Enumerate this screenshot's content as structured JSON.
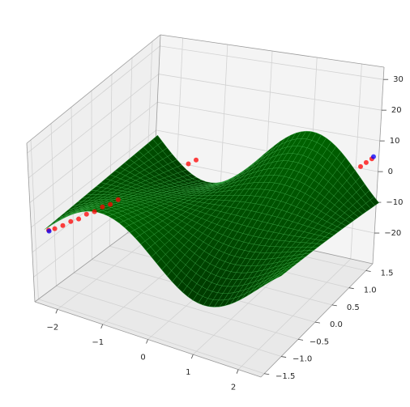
{
  "chart_data": {
    "type": "surface3d",
    "title": "",
    "xlabel": "",
    "ylabel": "",
    "zlabel": "",
    "x_ticks": [
      "−2",
      "−1",
      "0",
      "1",
      "2"
    ],
    "y_ticks": [
      "−1.5",
      "−1.0",
      "−0.5",
      "0.0",
      "0.5",
      "1.0",
      "1.5"
    ],
    "z_ticks": [
      "−20",
      "−10",
      "0",
      "10",
      "20",
      "30"
    ],
    "xlim": [
      -2.5,
      2.5
    ],
    "ylim": [
      -1.6,
      1.7
    ],
    "zlim": [
      -30,
      34
    ],
    "surface": {
      "function": "z = 8*sin(1.4*x)*y",
      "x_range": [
        -2.3,
        2.7
      ],
      "y_range": [
        -1.5,
        1.5
      ],
      "color": "#006400",
      "wire_color": "#3cb44b"
    },
    "scatter_series": [
      {
        "color": "#ff0000",
        "points": [
          [
            -2.25,
            -1.45,
            -1.5
          ],
          [
            -2.2,
            -1.35,
            -1.8
          ],
          [
            -2.15,
            -1.2,
            -2.1
          ],
          [
            -2.1,
            -1.05,
            -2.0
          ],
          [
            -2.05,
            -0.9,
            -2.5
          ],
          [
            -2.0,
            -0.75,
            -2.2
          ],
          [
            -1.95,
            -0.6,
            -2.7
          ],
          [
            -1.9,
            -0.45,
            -2.4
          ],
          [
            -1.85,
            -0.3,
            -2.9
          ],
          [
            -1.8,
            -0.15,
            -2.6
          ],
          [
            -1.75,
            0.0,
            -3.0
          ],
          [
            -1.7,
            0.15,
            -2.7
          ],
          [
            -1.65,
            0.3,
            -3.1
          ],
          [
            -1.6,
            0.45,
            -2.8
          ],
          [
            -1.55,
            0.6,
            -3.2
          ],
          [
            -1.5,
            0.75,
            -2.9
          ],
          [
            -1.45,
            0.9,
            -3.0
          ],
          [
            -1.4,
            1.05,
            -3.2
          ],
          [
            -1.35,
            1.2,
            -3.0
          ],
          [
            -1.3,
            1.35,
            -3.1
          ],
          [
            2.0,
            0.3,
            5.0
          ],
          [
            2.05,
            0.45,
            5.2
          ],
          [
            2.1,
            0.6,
            5.4
          ],
          [
            2.15,
            0.75,
            5.3
          ],
          [
            2.2,
            0.9,
            5.6
          ],
          [
            2.25,
            1.05,
            5.5
          ],
          [
            2.3,
            1.2,
            5.7
          ],
          [
            2.35,
            1.35,
            5.6
          ],
          [
            2.4,
            1.45,
            5.8
          ],
          [
            1.95,
            0.15,
            4.8
          ],
          [
            1.9,
            0.0,
            4.6
          ],
          [
            2.45,
            1.55,
            5.9
          ]
        ]
      },
      {
        "color": "#0000ff",
        "points": [
          [
            -2.2,
            -1.5,
            -1.0
          ],
          [
            -1.45,
            0.95,
            -3.1
          ],
          [
            2.25,
            1.1,
            5.5
          ],
          [
            2.45,
            1.6,
            6.0
          ]
        ]
      }
    ],
    "grid": true
  }
}
